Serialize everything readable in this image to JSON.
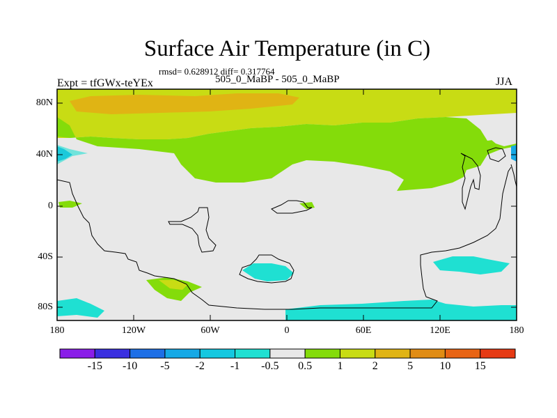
{
  "title": "Surface Air Temperature (in C)",
  "stats": "rmsd= 0.628912 diff= 0.317764",
  "experiment_label": "Expt = tfGWx-teYEx",
  "comparison": "505_0_MaBP - 505_0_MaBP",
  "season": "JJA",
  "y_ticks": [
    "80N",
    "40N",
    "0",
    "40S",
    "80S"
  ],
  "x_ticks": [
    "180",
    "120W",
    "60W",
    "0",
    "60E",
    "120E",
    "180"
  ],
  "colorbar": {
    "colors": [
      "#8a1ee8",
      "#3a2fe0",
      "#1e6fe6",
      "#16a9e6",
      "#14c8e0",
      "#1fe0d2",
      "#e8e8e8",
      "#84dc0a",
      "#c8dc14",
      "#e0b414",
      "#e08c14",
      "#e86414",
      "#e63a14"
    ],
    "labels": [
      "-15",
      "-10",
      "-5",
      "-2",
      "-1",
      "-0.5",
      "0.5",
      "1",
      "2",
      "5",
      "10",
      "15"
    ]
  },
  "colors": {
    "neutral": "#e8e8e8",
    "green": "#84dc0a",
    "yellow_green": "#c8dc14",
    "orange": "#e0b414",
    "cyan": "#1fe0d2",
    "blue": "#16a9e6"
  }
}
